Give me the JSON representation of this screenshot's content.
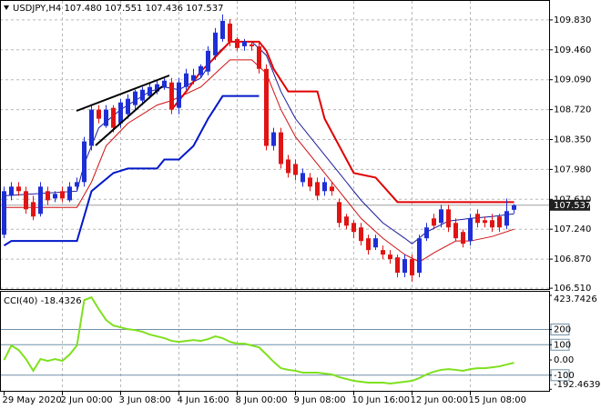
{
  "chart_data": {
    "type": "candlestick",
    "symbol": "USDJPY,H4",
    "ohlc_labels": [
      "107.480",
      "107.551",
      "107.436",
      "107.537"
    ],
    "categories": [
      "29 May 2020",
      null,
      null,
      null,
      null,
      null,
      null,
      null,
      "2 Jun 00:00",
      null,
      null,
      null,
      null,
      null,
      null,
      null,
      "3 Jun 08:00",
      null,
      null,
      null,
      null,
      null,
      null,
      null,
      "4 Jun 16:00",
      null,
      null,
      null,
      null,
      null,
      null,
      null,
      "8 Jun 00:00",
      null,
      null,
      null,
      null,
      null,
      null,
      null,
      "9 Jun 08:00",
      null,
      null,
      null,
      null,
      null,
      null,
      null,
      "10 Jun 16:00",
      null,
      null,
      null,
      null,
      null,
      null,
      null,
      "12 Jun 00:00",
      null,
      null,
      null,
      null,
      null,
      null,
      null,
      "15 Jun 08:00",
      null,
      null,
      null,
      null,
      null,
      null
    ],
    "open": [
      107.172,
      107.654,
      107.767,
      107.711,
      107.576,
      107.43,
      107.711,
      107.621,
      107.711,
      107.598,
      107.767,
      107.823,
      108.271,
      108.72,
      108.518,
      108.742,
      108.551,
      108.664,
      108.776,
      108.832,
      108.888,
      108.944,
      109.0,
      109.056,
      108.742,
      109.0,
      109.078,
      109.146,
      109.191,
      109.392,
      109.594,
      109.785,
      109.594,
      109.504,
      109.527,
      109.504,
      109.224,
      108.271,
      108.439,
      108.103,
      108.047,
      107.823,
      107.879,
      107.823,
      107.711,
      107.767,
      107.576,
      107.397,
      107.318,
      107.262,
      107.128,
      107.015,
      106.982,
      106.926,
      106.892,
      106.701,
      106.87,
      106.701,
      107.128,
      107.374,
      107.318,
      107.486,
      107.318,
      107.206,
      107.094,
      107.43,
      107.352,
      107.352,
      107.397,
      107.284,
      107.48
    ],
    "high": [
      107.767,
      107.823,
      107.823,
      107.767,
      107.654,
      107.823,
      107.767,
      107.711,
      107.767,
      107.823,
      107.879,
      108.383,
      108.776,
      108.776,
      108.776,
      108.776,
      108.854,
      108.91,
      108.966,
      109.0,
      109.056,
      109.078,
      109.112,
      109.112,
      109.112,
      109.224,
      109.224,
      109.28,
      109.504,
      109.729,
      109.897,
      109.841,
      109.617,
      109.594,
      109.56,
      109.56,
      109.28,
      108.495,
      108.495,
      108.159,
      108.103,
      107.991,
      107.935,
      107.879,
      107.879,
      107.823,
      107.621,
      107.43,
      107.352,
      107.318,
      107.172,
      107.172,
      107.038,
      106.982,
      106.926,
      106.926,
      106.926,
      107.172,
      107.318,
      107.43,
      107.542,
      107.542,
      107.374,
      107.24,
      107.43,
      107.486,
      107.397,
      107.43,
      107.43,
      107.621,
      107.551
    ],
    "low": [
      107.128,
      107.598,
      107.654,
      107.43,
      107.352,
      107.397,
      107.542,
      107.576,
      107.576,
      107.576,
      107.711,
      107.767,
      108.215,
      108.551,
      108.495,
      108.439,
      108.495,
      108.607,
      108.72,
      108.776,
      108.854,
      108.91,
      108.966,
      108.664,
      108.664,
      108.966,
      109.034,
      109.112,
      109.146,
      109.336,
      109.56,
      109.504,
      109.448,
      109.448,
      109.448,
      109.168,
      108.215,
      108.215,
      107.991,
      107.879,
      107.845,
      107.767,
      107.711,
      107.598,
      107.654,
      107.654,
      107.262,
      107.24,
      107.128,
      107.038,
      106.926,
      106.982,
      106.87,
      106.814,
      106.645,
      106.645,
      106.589,
      106.645,
      107.094,
      107.24,
      107.262,
      107.206,
      107.094,
      107.015,
      107.038,
      107.262,
      107.262,
      107.206,
      107.206,
      107.24,
      107.436
    ],
    "close": [
      107.711,
      107.767,
      107.711,
      107.486,
      107.397,
      107.767,
      107.598,
      107.677,
      107.621,
      107.767,
      107.823,
      108.327,
      108.72,
      108.607,
      108.72,
      108.495,
      108.809,
      108.854,
      108.944,
      108.966,
      109.0,
      109.034,
      109.078,
      108.72,
      109.056,
      109.168,
      109.146,
      109.258,
      109.448,
      109.673,
      109.818,
      109.56,
      109.482,
      109.56,
      109.504,
      109.224,
      108.271,
      108.439,
      108.047,
      107.935,
      107.912,
      107.935,
      107.767,
      107.654,
      107.823,
      107.711,
      107.318,
      107.284,
      107.206,
      107.094,
      106.982,
      107.128,
      106.926,
      106.87,
      106.701,
      106.87,
      106.668,
      107.128,
      107.262,
      107.284,
      107.486,
      107.262,
      107.128,
      107.06,
      107.374,
      107.318,
      107.318,
      107.262,
      107.262,
      107.464,
      107.537
    ],
    "up_color": "#1e2fd6",
    "down_color": "#e01414",
    "ylim": [
      106.5,
      110.065
    ],
    "yticks": [
      {
        "value": 109.83,
        "label": "109.830"
      },
      {
        "value": 109.46,
        "label": "109.460"
      },
      {
        "value": 109.09,
        "label": "109.090"
      },
      {
        "value": 108.72,
        "label": "108.720"
      },
      {
        "value": 108.35,
        "label": "108.350"
      },
      {
        "value": 107.98,
        "label": "107.980"
      },
      {
        "value": 107.61,
        "label": "107.610"
      },
      {
        "value": 107.24,
        "label": "107.240"
      },
      {
        "value": 106.87,
        "label": "106.870"
      },
      {
        "value": 106.51,
        "label": "106.510"
      }
    ],
    "grid": true,
    "current_price": {
      "value": 107.537,
      "label": "107.537"
    },
    "overlays": [
      {
        "color": "#1a1a9c",
        "width": 1,
        "x": [
          0,
          10,
          11,
          13,
          16,
          20,
          22,
          24,
          27,
          29,
          31,
          34,
          36,
          38,
          40,
          43,
          46,
          49,
          52,
          55,
          56,
          58,
          61,
          64,
          67,
          70
        ],
        "values": [
          107.654,
          107.711,
          108.047,
          108.495,
          108.72,
          108.944,
          109.0,
          108.966,
          109.112,
          109.392,
          109.56,
          109.56,
          109.392,
          108.944,
          108.607,
          108.271,
          107.935,
          107.598,
          107.318,
          107.128,
          107.06,
          107.206,
          107.341,
          107.374,
          107.397,
          107.43
        ]
      },
      {
        "color": "#d01010",
        "width": 1,
        "x": [
          0,
          10,
          12,
          14,
          17,
          21,
          23,
          27,
          29,
          31,
          34,
          36,
          38,
          40,
          43,
          46,
          49,
          52,
          55,
          57,
          59,
          62,
          64,
          67,
          70
        ],
        "values": [
          107.509,
          107.509,
          107.823,
          108.271,
          108.551,
          108.776,
          108.832,
          109.0,
          109.168,
          109.336,
          109.336,
          109.168,
          108.72,
          108.383,
          108.047,
          107.711,
          107.374,
          107.128,
          106.926,
          106.836,
          106.948,
          107.094,
          107.094,
          107.15,
          107.24
        ]
      },
      {
        "color": "#e00000",
        "width": 2,
        "x": [
          23,
          25,
          27,
          29,
          31,
          35,
          36,
          37,
          39,
          43,
          44,
          46,
          48,
          51,
          54,
          70
        ],
        "values": [
          108.72,
          108.944,
          109.191,
          109.37,
          109.56,
          109.56,
          109.448,
          109.224,
          108.944,
          108.944,
          108.607,
          108.271,
          107.935,
          107.879,
          107.576,
          107.576
        ]
      },
      {
        "color": "#0018c8",
        "width": 2,
        "x": [
          0,
          1,
          10,
          12,
          15,
          17,
          21,
          22,
          24,
          26,
          28,
          30,
          35
        ],
        "values": [
          107.038,
          107.094,
          107.094,
          107.711,
          107.935,
          107.991,
          107.991,
          108.103,
          108.103,
          108.271,
          108.607,
          108.888,
          108.888
        ]
      }
    ],
    "cci": {
      "title": "CCI(40)",
      "color": "#7ee01e",
      "values": [
        0,
        95,
        65,
        6,
        -71,
        6,
        -6,
        6,
        -6,
        36,
        95,
        393,
        411,
        333,
        262,
        226,
        214,
        202,
        196,
        185,
        167,
        155,
        143,
        125,
        119,
        125,
        131,
        125,
        137,
        155,
        143,
        119,
        107,
        107,
        95,
        83,
        36,
        -12,
        -54,
        -65,
        -71,
        -83,
        -83,
        -83,
        -89,
        -95,
        -113,
        -125,
        -137,
        -143,
        -149,
        -149,
        -149,
        -155,
        -149,
        -143,
        -137,
        -119,
        -95,
        -77,
        -65,
        -60,
        -65,
        -71,
        -60,
        -54,
        -54,
        -48,
        -42,
        -30,
        -18.4326
      ],
      "ylim": [
        -192.4639,
        423.7426
      ],
      "yticks": [
        423.7426,
        200,
        100,
        {
          "value": 0,
          "label": "0.00"
        },
        -100,
        -192.4639
      ],
      "levels": [
        200,
        100,
        -100
      ]
    }
  }
}
